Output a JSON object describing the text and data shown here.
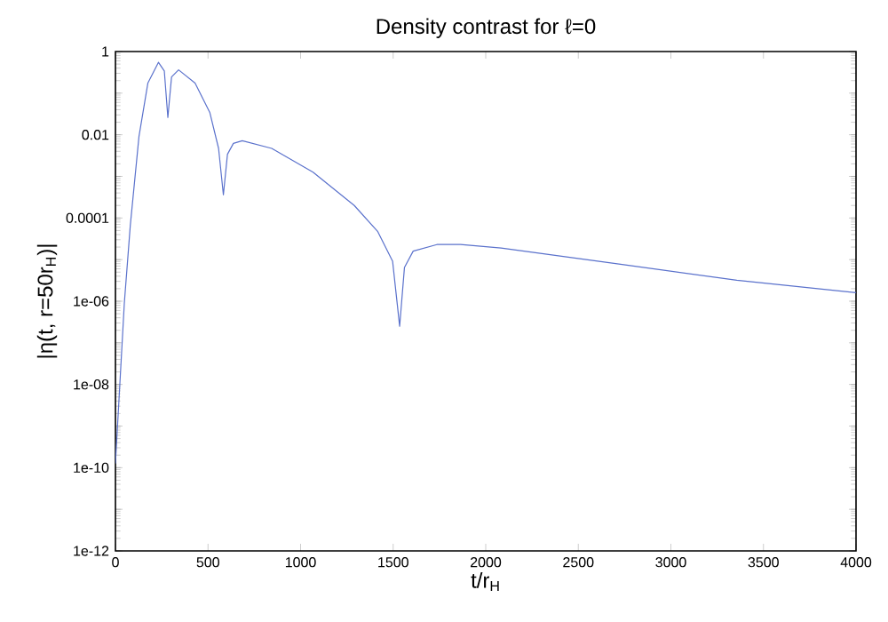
{
  "chart_data": {
    "type": "line",
    "title": "Density contrast for ℓ=0",
    "xlabel": "t/r$_{H}$",
    "ylabel": "|η(t, r=50r$_{H}$)|",
    "log": "y",
    "marker": "none",
    "xlim": [
      0,
      4000
    ],
    "xticks": [
      0,
      500,
      1000,
      1500,
      2000,
      2500,
      3000,
      3500,
      4000
    ],
    "ylim": [
      1e-12,
      1
    ],
    "yticks": [
      {
        "value": 1e-12,
        "label": "1e-12"
      },
      {
        "value": 1e-11,
        "label": null
      },
      {
        "value": 1e-10,
        "label": "1e-10"
      },
      {
        "value": 1e-09,
        "label": null
      },
      {
        "value": 1e-08,
        "label": "1e-08"
      },
      {
        "value": 1e-07,
        "label": null
      },
      {
        "value": 1e-06,
        "label": "1e-06"
      },
      {
        "value": 1e-05,
        "label": null
      },
      0.0001,
      {
        "value": 0.001,
        "label": null
      },
      0.01,
      {
        "value": 0.1,
        "label": null
      },
      1
    ],
    "series": [
      {
        "color": "#5b72cc",
        "x": [
          0,
          48,
          80,
          127,
          175,
          232,
          264,
          283,
          303,
          341,
          430,
          510,
          557,
          583,
          605,
          637,
          685,
          844,
          1067,
          1290,
          1417,
          1497,
          1535,
          1561,
          1608,
          1736,
          1863,
          2083,
          2719,
          3356,
          4000
        ],
        "values": [
          1.26e-10,
          9.1e-07,
          6.5e-05,
          0.0091,
          0.174,
          0.55,
          0.34,
          0.026,
          0.245,
          0.363,
          0.174,
          0.034,
          0.0047,
          0.00036,
          0.0034,
          0.0062,
          0.0072,
          0.0047,
          0.00126,
          0.0002,
          4.7e-05,
          9.1e-06,
          2.5e-07,
          6.5e-06,
          1.6e-05,
          2.3e-05,
          2.3e-05,
          1.9e-05,
          7.8e-06,
          3.2e-06,
          1.6e-06
        ]
      }
    ]
  }
}
